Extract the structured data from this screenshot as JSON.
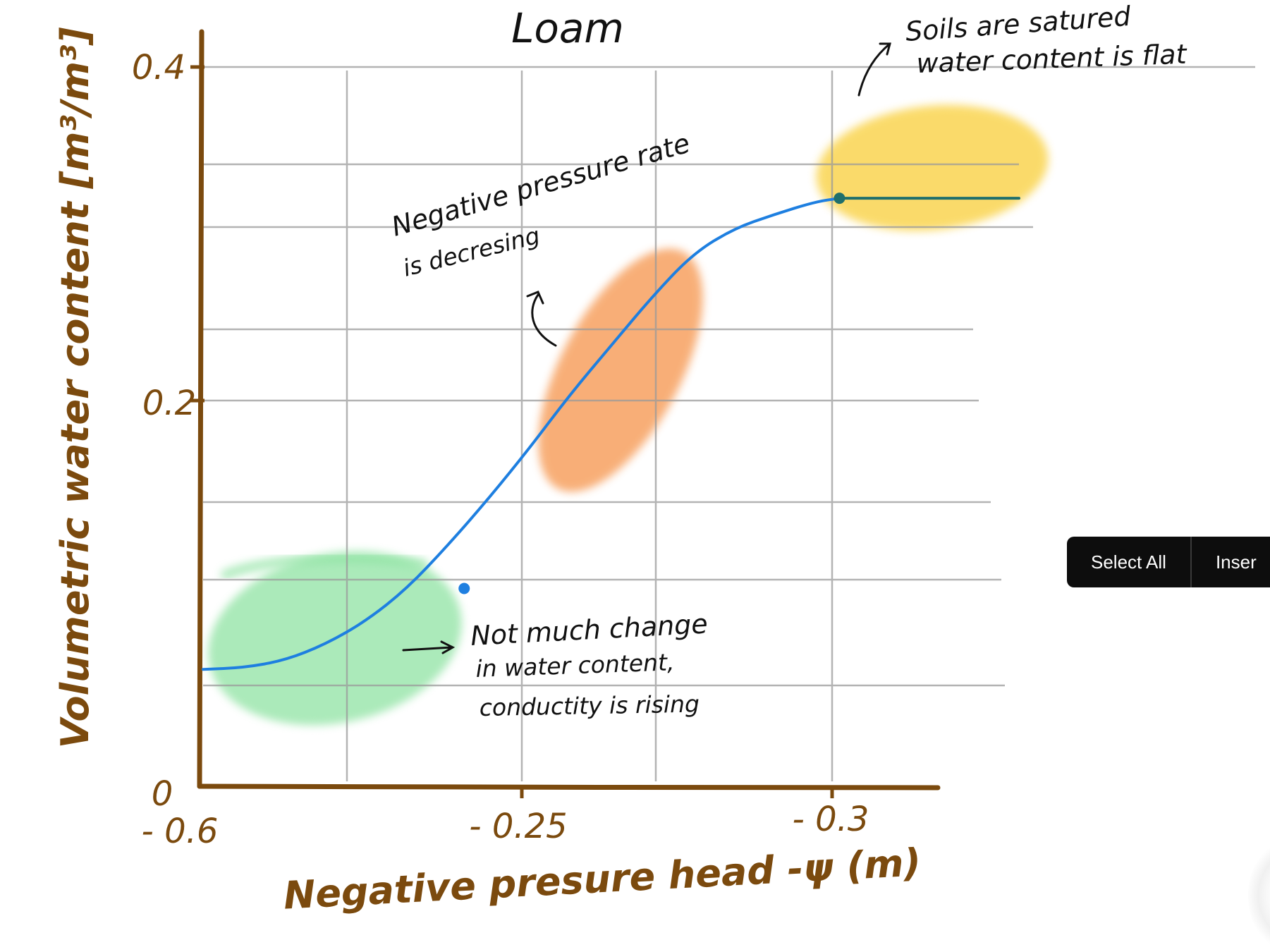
{
  "chart_data": {
    "type": "line",
    "title": "Loam",
    "xlabel": "Negative presure head -ψ (m)",
    "ylabel": "Volumetric water content [m³/m³]",
    "x_ticks": [
      "- 0.6",
      "- 0.25",
      "- 0.3"
    ],
    "y_ticks": [
      "0",
      "0.2",
      "0.4"
    ],
    "ylim": [
      0,
      0.4
    ],
    "grid": true,
    "series": [
      {
        "values": [
          {
            "x": 0.0,
            "y": 0.065
          },
          {
            "x": 0.05,
            "y": 0.066
          },
          {
            "x": 0.1,
            "y": 0.07
          },
          {
            "x": 0.15,
            "y": 0.079
          },
          {
            "x": 0.2,
            "y": 0.092
          },
          {
            "x": 0.25,
            "y": 0.11
          },
          {
            "x": 0.3,
            "y": 0.134
          },
          {
            "x": 0.35,
            "y": 0.16
          },
          {
            "x": 0.4,
            "y": 0.188
          },
          {
            "x": 0.45,
            "y": 0.218
          },
          {
            "x": 0.5,
            "y": 0.245
          },
          {
            "x": 0.55,
            "y": 0.272
          },
          {
            "x": 0.6,
            "y": 0.296
          },
          {
            "x": 0.65,
            "y": 0.31
          },
          {
            "x": 0.7,
            "y": 0.318
          },
          {
            "x": 0.75,
            "y": 0.325
          },
          {
            "x": 0.78,
            "y": 0.327
          }
        ],
        "flat_segment": {
          "from_x": 0.78,
          "to_x": 1.0,
          "y": 0.327
        },
        "marked_points": [
          {
            "x": 0.32,
            "y": 0.11
          },
          {
            "x": 0.78,
            "y": 0.327
          }
        ],
        "color": "#1e7fe0",
        "overlap_color": "#1f6f6c"
      }
    ],
    "highlights": [
      {
        "name": "green",
        "color": "#8fe3a3"
      },
      {
        "name": "orange",
        "color": "#f7a160"
      },
      {
        "name": "yellow",
        "color": "#fad75a"
      }
    ],
    "annotations": {
      "saturated_line1": "Soils are satured",
      "saturated_line2": "water content is flat",
      "rate_line1": "Negative pressure rate",
      "rate_line2": "is decresing",
      "change_line1": "Not much change",
      "change_line2": "in water content,",
      "change_line3": "conductity is rising"
    },
    "axis_color": "#7b4a0e"
  },
  "popup": {
    "select_all": "Select All",
    "insert": "Inser"
  }
}
